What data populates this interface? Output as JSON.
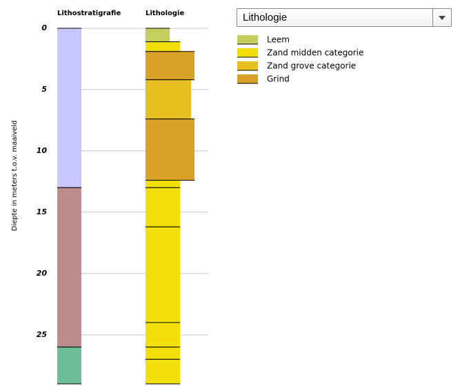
{
  "chart_data": {
    "type": "borehole",
    "strat_title": "Lithostratigrafie",
    "lith_title": "Lithologie",
    "ylabel": "Diepte in meters t.o.v. maaiveld",
    "selector": "Lithologie",
    "ylim": [
      0,
      29
    ],
    "yticks": [
      0,
      5,
      10,
      15,
      20,
      25
    ],
    "grid": true,
    "legend": [
      {
        "name": "Leem",
        "color": "#c4cf5e"
      },
      {
        "name": "Zand midden categorie",
        "color": "#f3e00b"
      },
      {
        "name": "Zand grove categorie",
        "color": "#e6c01e"
      },
      {
        "name": "Grind",
        "color": "#d8a227"
      }
    ],
    "strat_layers": [
      {
        "top": 0,
        "bottom": 13,
        "color": "#c8c8ff"
      },
      {
        "top": 13,
        "bottom": 26,
        "color": "#bc8c8c"
      },
      {
        "top": 26,
        "bottom": 29,
        "color": "#6cbf98"
      }
    ],
    "lith_layers": [
      {
        "top": 0,
        "bottom": 1.1,
        "lith": 0
      },
      {
        "top": 1.1,
        "bottom": 1.9,
        "lith": 1
      },
      {
        "top": 1.9,
        "bottom": 4.2,
        "lith": 3
      },
      {
        "top": 4.2,
        "bottom": 7.4,
        "lith": 2
      },
      {
        "top": 7.4,
        "bottom": 12.4,
        "lith": 3
      },
      {
        "top": 12.4,
        "bottom": 13,
        "lith": 1
      },
      {
        "top": 13,
        "bottom": 16.2,
        "lith": 1
      },
      {
        "top": 16.2,
        "bottom": 24,
        "lith": 1
      },
      {
        "top": 24,
        "bottom": 26,
        "lith": 1
      },
      {
        "top": 26,
        "bottom": 27,
        "lith": 1
      },
      {
        "top": 27,
        "bottom": 29,
        "lith": 1
      }
    ]
  }
}
